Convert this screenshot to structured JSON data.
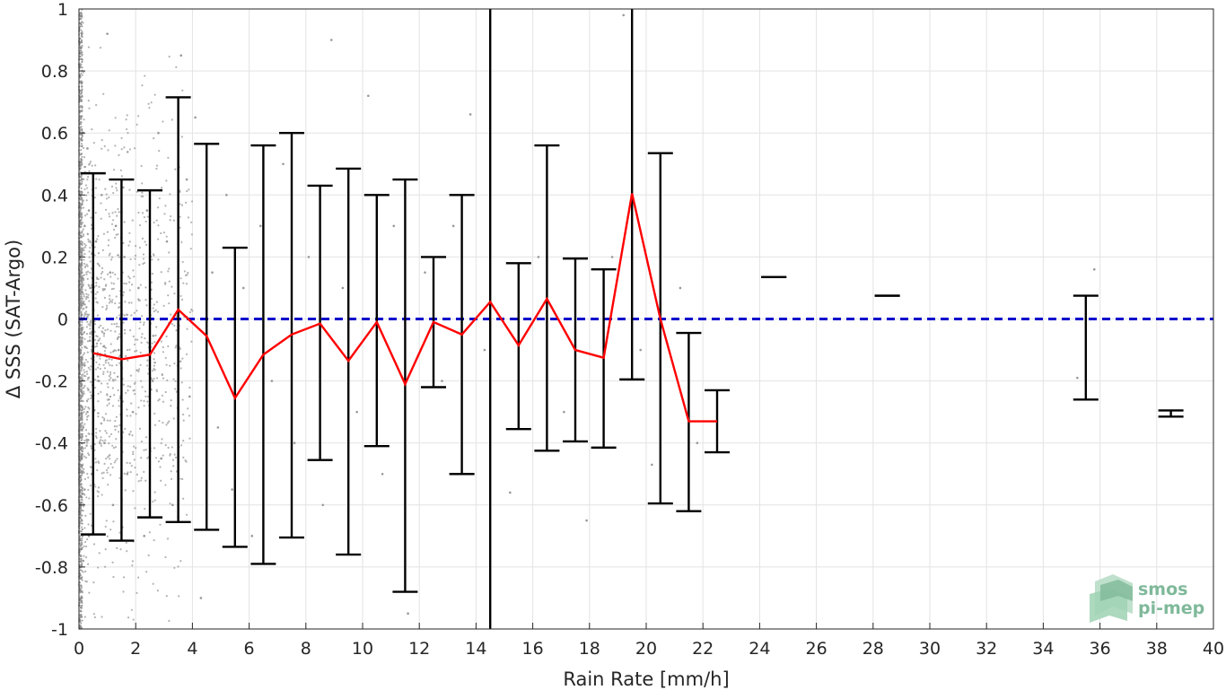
{
  "chart_data": {
    "type": "scatter",
    "xlabel": "Rain Rate [mm/h]",
    "ylabel": "Δ SSS (SAT-Argo)",
    "xlim": [
      0,
      40
    ],
    "ylim": [
      -1,
      1
    ],
    "x_ticks": [
      0,
      2,
      4,
      6,
      8,
      10,
      12,
      14,
      16,
      18,
      20,
      22,
      24,
      26,
      28,
      30,
      32,
      34,
      36,
      38,
      40
    ],
    "y_ticks": [
      -1,
      -0.8,
      -0.6,
      -0.4,
      -0.2,
      0,
      0.2,
      0.4,
      0.6,
      0.8,
      1
    ],
    "y_tick_labels": [
      "-1",
      "-0.8",
      "-0.6",
      "-0.4",
      "-0.2",
      "0",
      "0.2",
      "0.4",
      "0.6",
      "0.8",
      "1"
    ],
    "grid": true,
    "zero_line": {
      "y": 0,
      "color": "#0000cc",
      "style": "dashed"
    },
    "mean_line": {
      "color": "#ff0000",
      "x": [
        0.5,
        1.5,
        2.5,
        3.5,
        4.5,
        5.5,
        6.5,
        7.5,
        8.5,
        9.5,
        10.5,
        11.5,
        12.5,
        13.5,
        14.5,
        15.5,
        16.5,
        17.5,
        18.5,
        19.5,
        20.5,
        21.5,
        22.5
      ],
      "y": [
        -0.11,
        -0.13,
        -0.115,
        0.03,
        -0.055,
        -0.255,
        -0.115,
        -0.05,
        -0.015,
        -0.135,
        -0.01,
        -0.21,
        -0.01,
        -0.05,
        0.055,
        -0.085,
        0.065,
        -0.1,
        -0.125,
        0.405,
        0.0,
        -0.33,
        -0.33
      ]
    },
    "error_bars": {
      "color": "#000000",
      "items": [
        {
          "x": 0.5,
          "low": -0.695,
          "high": 0.47
        },
        {
          "x": 1.5,
          "low": -0.715,
          "high": 0.45
        },
        {
          "x": 2.5,
          "low": -0.64,
          "high": 0.415
        },
        {
          "x": 3.5,
          "low": -0.655,
          "high": 0.715
        },
        {
          "x": 4.5,
          "low": -0.68,
          "high": 0.565
        },
        {
          "x": 5.5,
          "low": -0.735,
          "high": 0.23
        },
        {
          "x": 6.5,
          "low": -0.79,
          "high": 0.56
        },
        {
          "x": 7.5,
          "low": -0.705,
          "high": 0.6
        },
        {
          "x": 8.5,
          "low": -0.455,
          "high": 0.43
        },
        {
          "x": 9.5,
          "low": -0.76,
          "high": 0.485
        },
        {
          "x": 10.5,
          "low": -0.41,
          "high": 0.4
        },
        {
          "x": 11.5,
          "low": -0.88,
          "high": 0.45
        },
        {
          "x": 12.5,
          "low": -0.22,
          "high": 0.2
        },
        {
          "x": 13.5,
          "low": -0.5,
          "high": 0.4
        },
        {
          "x": 14.5,
          "low": -1.0,
          "high": 1.0
        },
        {
          "x": 15.5,
          "low": -0.355,
          "high": 0.18
        },
        {
          "x": 16.5,
          "low": -0.425,
          "high": 0.56
        },
        {
          "x": 17.5,
          "low": -0.395,
          "high": 0.195
        },
        {
          "x": 18.5,
          "low": -0.415,
          "high": 0.16
        },
        {
          "x": 19.5,
          "low": -0.195,
          "high": 1.0
        },
        {
          "x": 20.5,
          "low": -0.595,
          "high": 0.535
        },
        {
          "x": 21.5,
          "low": -0.62,
          "high": -0.045
        },
        {
          "x": 22.5,
          "low": -0.43,
          "high": -0.23
        },
        {
          "x": 24.5,
          "low": 0.135,
          "high": 0.135
        },
        {
          "x": 28.5,
          "low": 0.075,
          "high": 0.075
        },
        {
          "x": 35.5,
          "low": -0.26,
          "high": 0.075
        },
        {
          "x": 38.5,
          "low": -0.315,
          "high": -0.295
        }
      ]
    },
    "scatter": {
      "color": "#999999",
      "points": [
        {
          "x": 0.1,
          "y": 0.92
        },
        {
          "x": 0.1,
          "y": 0.75
        },
        {
          "x": 0.15,
          "y": 0.6
        },
        {
          "x": 0.1,
          "y": 0.45
        },
        {
          "x": 0.2,
          "y": 0.3
        },
        {
          "x": 0.1,
          "y": 0.15
        },
        {
          "x": 0.15,
          "y": 0.05
        },
        {
          "x": 0.1,
          "y": -0.05
        },
        {
          "x": 0.2,
          "y": -0.15
        },
        {
          "x": 0.1,
          "y": -0.25
        },
        {
          "x": 0.15,
          "y": -0.35
        },
        {
          "x": 0.1,
          "y": -0.45
        },
        {
          "x": 0.2,
          "y": -0.55
        },
        {
          "x": 0.1,
          "y": -0.65
        },
        {
          "x": 0.15,
          "y": -0.78
        },
        {
          "x": 0.1,
          "y": -0.9
        },
        {
          "x": 0.3,
          "y": 0.55
        },
        {
          "x": 0.35,
          "y": 0.35
        },
        {
          "x": 0.4,
          "y": 0.1
        },
        {
          "x": 0.3,
          "y": -0.3
        },
        {
          "x": 0.45,
          "y": -0.5
        },
        {
          "x": 0.35,
          "y": -0.7
        },
        {
          "x": 0.6,
          "y": 0.25
        },
        {
          "x": 0.7,
          "y": -0.2
        },
        {
          "x": 0.8,
          "y": 0.4
        },
        {
          "x": 0.9,
          "y": -0.4
        },
        {
          "x": 1.0,
          "y": 0.92
        },
        {
          "x": 1.1,
          "y": 0.15
        },
        {
          "x": 1.2,
          "y": -0.6
        },
        {
          "x": 1.3,
          "y": 0.3
        },
        {
          "x": 1.4,
          "y": -0.1
        },
        {
          "x": 1.6,
          "y": 0.2
        },
        {
          "x": 1.7,
          "y": -0.5
        },
        {
          "x": 1.8,
          "y": 0.45
        },
        {
          "x": 1.9,
          "y": -0.3
        },
        {
          "x": 2.1,
          "y": 0.1
        },
        {
          "x": 2.3,
          "y": -0.7
        },
        {
          "x": 2.4,
          "y": 0.35
        },
        {
          "x": 2.6,
          "y": -0.2
        },
        {
          "x": 2.8,
          "y": 0.6
        },
        {
          "x": 2.9,
          "y": -0.45
        },
        {
          "x": 3.1,
          "y": 0.25
        },
        {
          "x": 3.3,
          "y": -0.6
        },
        {
          "x": 3.6,
          "y": 0.85
        },
        {
          "x": 3.8,
          "y": 0.45
        },
        {
          "x": 3.9,
          "y": -0.25
        },
        {
          "x": 4.1,
          "y": 0.65
        },
        {
          "x": 4.3,
          "y": -0.9
        },
        {
          "x": 4.7,
          "y": 0.15
        },
        {
          "x": 4.9,
          "y": -0.35
        },
        {
          "x": 5.2,
          "y": 0.4
        },
        {
          "x": 5.4,
          "y": -0.55
        },
        {
          "x": 5.8,
          "y": 0.1
        },
        {
          "x": 6.1,
          "y": -0.7
        },
        {
          "x": 6.4,
          "y": 0.3
        },
        {
          "x": 6.8,
          "y": -0.2
        },
        {
          "x": 7.2,
          "y": 0.5
        },
        {
          "x": 7.6,
          "y": -0.4
        },
        {
          "x": 8.1,
          "y": 0.2
        },
        {
          "x": 8.6,
          "y": -0.6
        },
        {
          "x": 8.9,
          "y": 0.9
        },
        {
          "x": 9.3,
          "y": 0.1
        },
        {
          "x": 9.8,
          "y": -0.3
        },
        {
          "x": 10.2,
          "y": 0.72
        },
        {
          "x": 10.7,
          "y": -0.5
        },
        {
          "x": 11.1,
          "y": 0.3
        },
        {
          "x": 11.6,
          "y": -0.95
        },
        {
          "x": 12.2,
          "y": 0.15
        },
        {
          "x": 12.8,
          "y": -0.2
        },
        {
          "x": 13.2,
          "y": 0.3
        },
        {
          "x": 13.8,
          "y": 0.66
        },
        {
          "x": 14.3,
          "y": -0.1
        },
        {
          "x": 15.2,
          "y": -0.56
        },
        {
          "x": 16.2,
          "y": 0.2
        },
        {
          "x": 17.1,
          "y": -0.3
        },
        {
          "x": 17.9,
          "y": -0.65
        },
        {
          "x": 18.8,
          "y": 0.2
        },
        {
          "x": 19.2,
          "y": 0.98
        },
        {
          "x": 19.8,
          "y": -0.1
        },
        {
          "x": 20.2,
          "y": -0.47
        },
        {
          "x": 21.2,
          "y": 0.1
        },
        {
          "x": 21.8,
          "y": -0.4
        },
        {
          "x": 35.2,
          "y": -0.19
        },
        {
          "x": 35.8,
          "y": 0.16
        }
      ]
    }
  },
  "logo": {
    "line1": "smos",
    "line2": "pi-mep",
    "color": "#7fb99a"
  }
}
